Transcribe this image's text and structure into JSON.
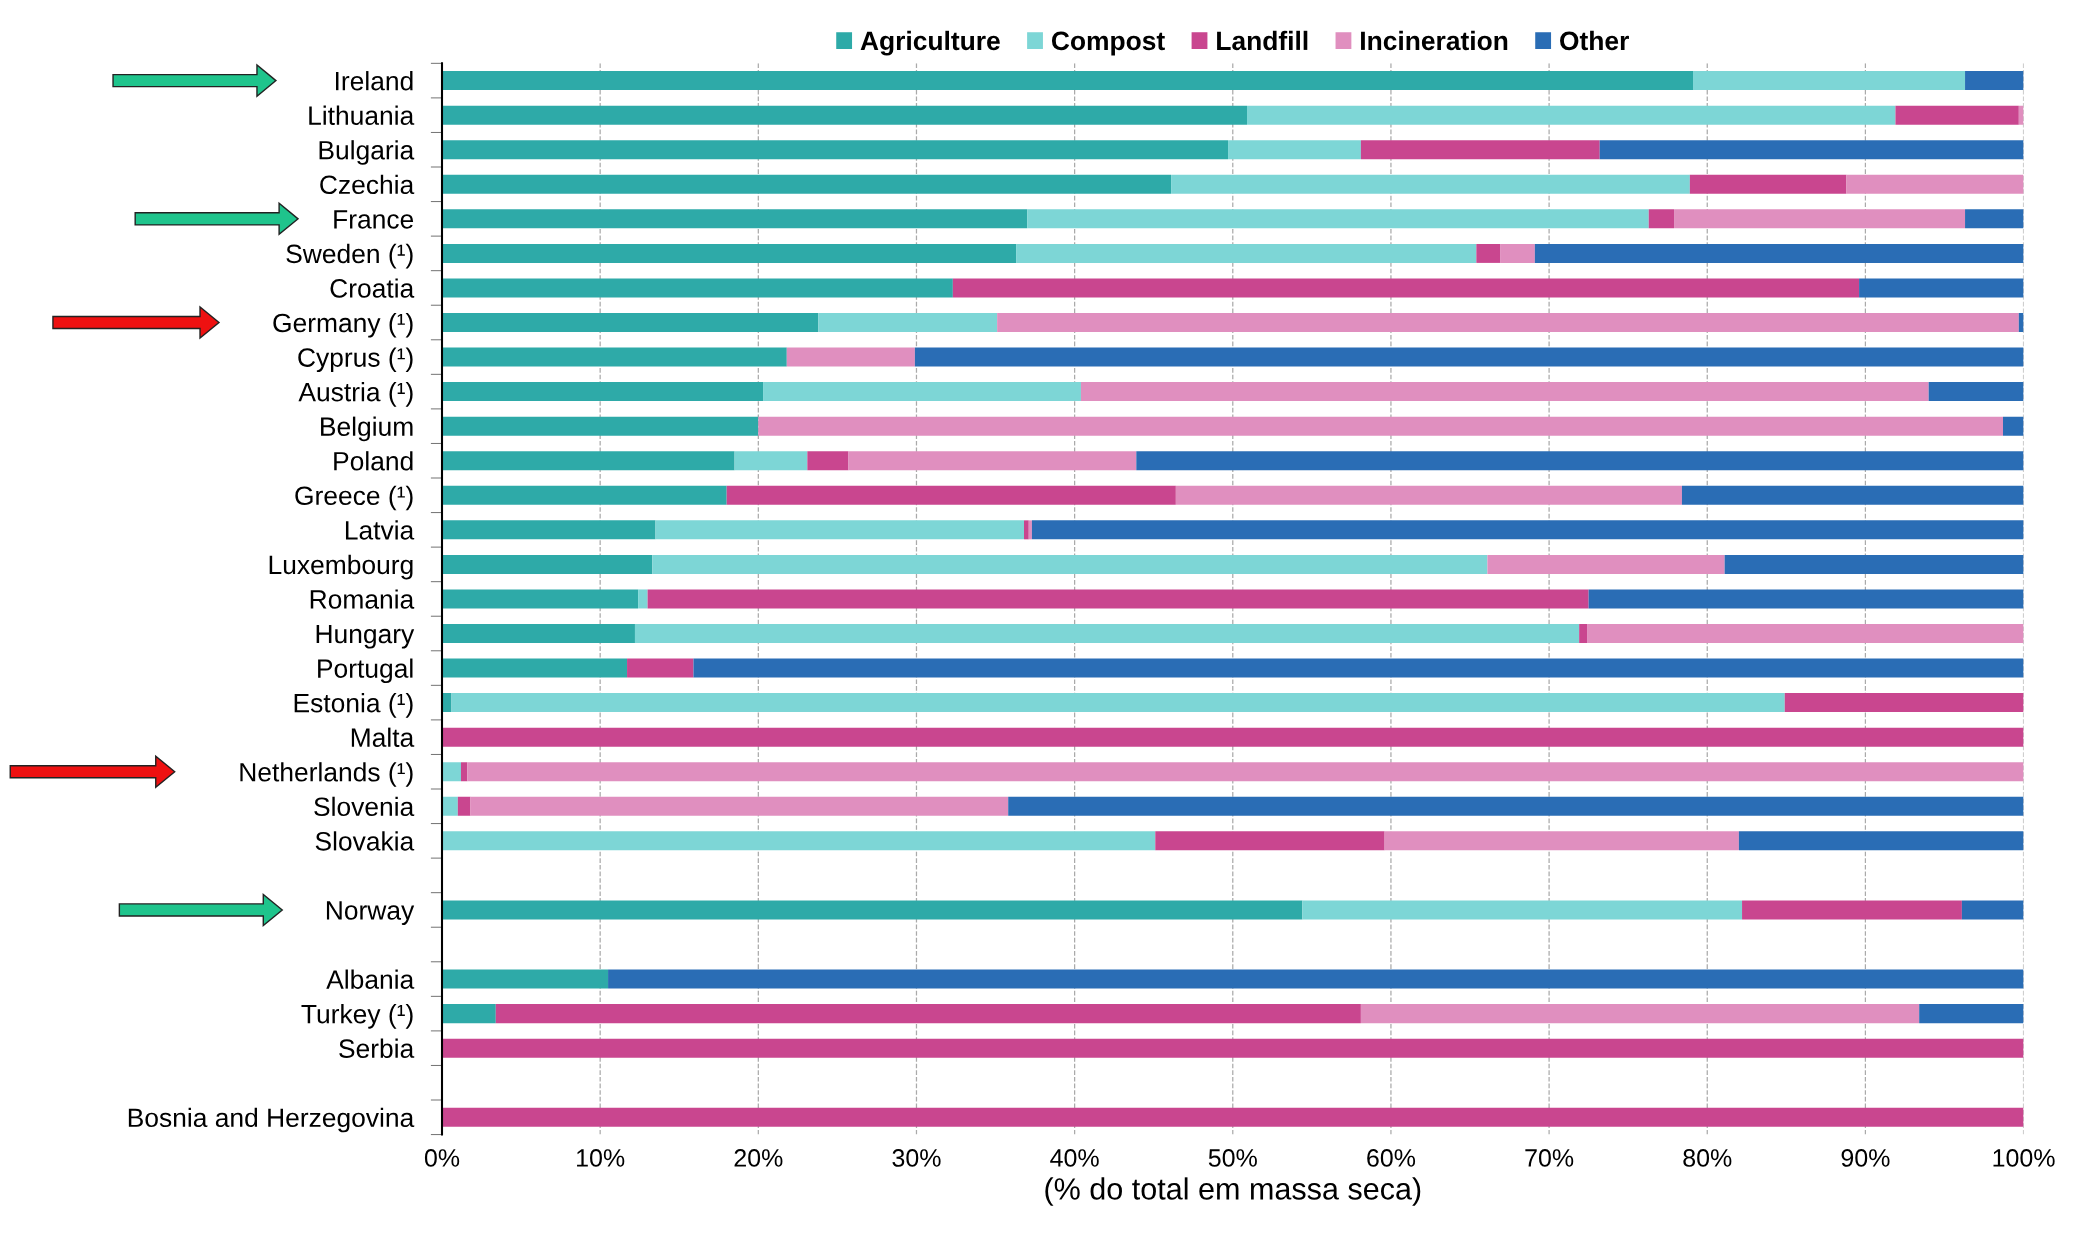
{
  "chart_data": {
    "type": "bar",
    "orientation": "horizontal",
    "stacked": true,
    "xlabel": "(% do total em massa seca)",
    "categories": [
      "Ireland",
      "Lithuania",
      "Bulgaria",
      "Czechia",
      "France",
      "Sweden (¹)",
      "Croatia",
      "Germany (¹)",
      "Cyprus (¹)",
      "Austria (¹)",
      "Belgium",
      "Poland",
      "Greece (¹)",
      "Latvia",
      "Luxembourg",
      "Romania",
      "Hungary",
      "Portugal",
      "Estonia (¹)",
      "Malta",
      "Netherlands (¹)",
      "Slovenia",
      "Slovakia",
      null,
      "Norway",
      null,
      "Albania",
      "Turkey (¹)",
      "Serbia",
      null,
      "Bosnia and Herzegovina"
    ],
    "series": [
      {
        "name": "Agriculture",
        "color": "#2eaaa8",
        "values": [
          79.1,
          50.9,
          49.7,
          46.1,
          37.0,
          36.3,
          32.3,
          23.8,
          21.8,
          20.3,
          20.0,
          18.5,
          18.0,
          13.5,
          13.3,
          12.4,
          12.2,
          11.7,
          0.6,
          0,
          0,
          0,
          0,
          null,
          54.4,
          null,
          10.5,
          3.4,
          0,
          null,
          0
        ]
      },
      {
        "name": "Compost",
        "color": "#7dd6d6",
        "values": [
          17.2,
          41.0,
          8.4,
          32.8,
          39.3,
          29.1,
          0,
          11.3,
          0,
          20.1,
          0,
          4.6,
          0,
          23.3,
          52.8,
          0.6,
          59.7,
          0,
          84.3,
          0,
          1.2,
          1.0,
          45.1,
          null,
          27.8,
          null,
          0,
          0,
          0,
          null,
          0
        ]
      },
      {
        "name": "Landfill",
        "color": "#c9468f",
        "values": [
          0,
          7.8,
          15.1,
          9.9,
          1.6,
          1.5,
          57.3,
          0,
          0,
          0,
          0,
          2.6,
          28.4,
          0.3,
          0,
          59.5,
          0.5,
          4.2,
          15.1,
          100,
          0.4,
          0.8,
          14.5,
          null,
          13.9,
          null,
          0,
          54.7,
          100,
          null,
          100
        ]
      },
      {
        "name": "Incineration",
        "color": "#e08fbf",
        "values": [
          0,
          0.3,
          0,
          11.2,
          18.4,
          2.2,
          0,
          64.6,
          8.1,
          53.6,
          78.7,
          18.2,
          32.0,
          0.2,
          15.0,
          0,
          27.6,
          0,
          0,
          0,
          98.4,
          34.0,
          22.4,
          null,
          0,
          null,
          0,
          35.3,
          0,
          null,
          0
        ]
      },
      {
        "name": "Other",
        "color": "#2a6db5",
        "values": [
          3.7,
          0,
          26.8,
          0,
          3.7,
          30.9,
          10.4,
          0.3,
          70.1,
          6.0,
          1.3,
          56.1,
          21.6,
          62.7,
          18.9,
          27.5,
          0,
          84.1,
          0,
          0,
          0,
          64.2,
          18.0,
          null,
          3.9,
          null,
          89.5,
          6.6,
          0,
          null,
          0
        ]
      }
    ],
    "xlim": [
      0,
      100
    ],
    "xticks": [
      {
        "value": 0,
        "label": "0%"
      },
      {
        "value": 10,
        "label": "10%"
      },
      {
        "value": 20,
        "label": "20%"
      },
      {
        "value": 30,
        "label": "30%"
      },
      {
        "value": 40,
        "label": "40%"
      },
      {
        "value": 50,
        "label": "50%"
      },
      {
        "value": 60,
        "label": "60%"
      },
      {
        "value": 70,
        "label": "70%"
      },
      {
        "value": 80,
        "label": "80%"
      },
      {
        "value": 90,
        "label": "90%"
      },
      {
        "value": 100,
        "label": "100%"
      }
    ],
    "grid": "x",
    "legend": "top"
  }
}
